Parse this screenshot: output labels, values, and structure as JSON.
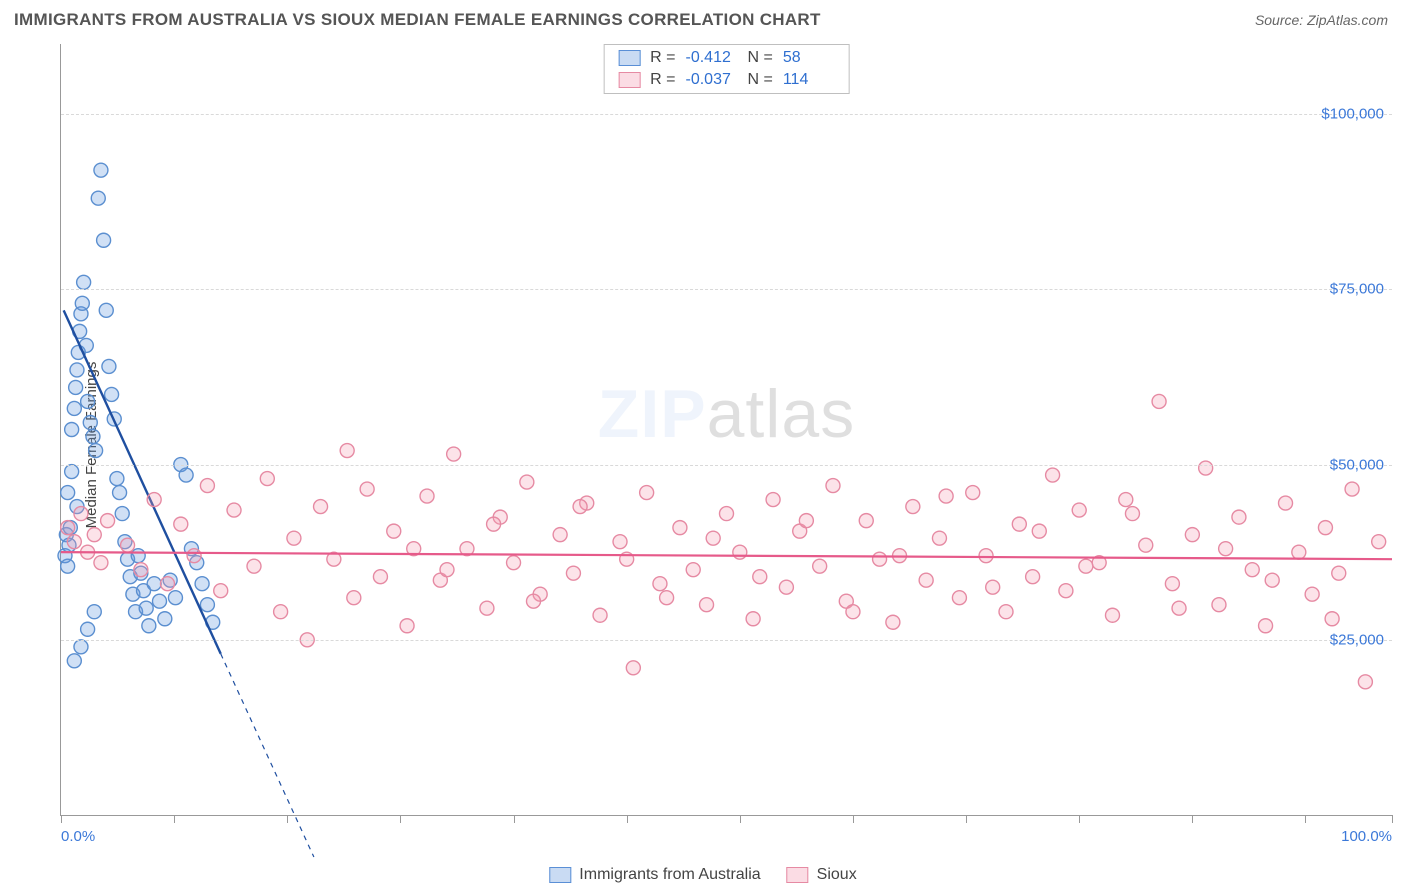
{
  "title": "IMMIGRANTS FROM AUSTRALIA VS SIOUX MEDIAN FEMALE EARNINGS CORRELATION CHART",
  "source_label": "Source: ZipAtlas.com",
  "y_axis_label": "Median Female Earnings",
  "watermark_a": "ZIP",
  "watermark_b": "atlas",
  "chart": {
    "type": "scatter",
    "xlim": [
      0,
      100
    ],
    "ylim": [
      0,
      110000
    ],
    "y_ticks": [
      25000,
      50000,
      75000,
      100000
    ],
    "y_tick_labels": [
      "$25,000",
      "$50,000",
      "$75,000",
      "$100,000"
    ],
    "x_edge_labels": [
      "0.0%",
      "100.0%"
    ],
    "x_minor_ticks": [
      0,
      8.5,
      17,
      25.5,
      34,
      42.5,
      51,
      59.5,
      68,
      76.5,
      85,
      93.5,
      100
    ],
    "grid_color": "#d9d9d9",
    "axis_color": "#999999",
    "marker_radius": 7,
    "marker_stroke_width": 1.4,
    "series": [
      {
        "name": "Immigrants from Australia",
        "fill": "rgba(99,153,222,0.30)",
        "stroke": "#5b8fd0",
        "R_label": "R =",
        "R": "-0.412",
        "N_label": "N =",
        "N": "58",
        "trend": {
          "x1": 0.2,
          "y1": 72000,
          "x2": 12,
          "y2": 23000,
          "stroke": "#1f4fa0",
          "width": 2.4,
          "ext_x2": 19,
          "ext_y2": -6000,
          "dash": "5,5"
        },
        "points": [
          [
            0.3,
            37000
          ],
          [
            0.4,
            40000
          ],
          [
            0.5,
            35500
          ],
          [
            0.6,
            38500
          ],
          [
            0.7,
            41000
          ],
          [
            0.8,
            55000
          ],
          [
            1.0,
            58000
          ],
          [
            1.1,
            61000
          ],
          [
            1.2,
            63500
          ],
          [
            1.3,
            66000
          ],
          [
            1.4,
            69000
          ],
          [
            1.5,
            71500
          ],
          [
            1.6,
            73000
          ],
          [
            1.7,
            76000
          ],
          [
            1.9,
            67000
          ],
          [
            2.0,
            59000
          ],
          [
            2.2,
            56000
          ],
          [
            2.4,
            54000
          ],
          [
            2.6,
            52000
          ],
          [
            2.8,
            88000
          ],
          [
            3.0,
            92000
          ],
          [
            3.2,
            82000
          ],
          [
            3.4,
            72000
          ],
          [
            3.6,
            64000
          ],
          [
            3.8,
            60000
          ],
          [
            4.0,
            56500
          ],
          [
            4.2,
            48000
          ],
          [
            4.4,
            46000
          ],
          [
            4.6,
            43000
          ],
          [
            4.8,
            39000
          ],
          [
            5.0,
            36500
          ],
          [
            5.2,
            34000
          ],
          [
            5.4,
            31500
          ],
          [
            5.6,
            29000
          ],
          [
            5.8,
            37000
          ],
          [
            6.0,
            34500
          ],
          [
            6.2,
            32000
          ],
          [
            6.4,
            29500
          ],
          [
            6.6,
            27000
          ],
          [
            7.0,
            33000
          ],
          [
            7.4,
            30500
          ],
          [
            7.8,
            28000
          ],
          [
            8.2,
            33500
          ],
          [
            8.6,
            31000
          ],
          [
            9.0,
            50000
          ],
          [
            9.4,
            48500
          ],
          [
            9.8,
            38000
          ],
          [
            10.2,
            36000
          ],
          [
            10.6,
            33000
          ],
          [
            11.0,
            30000
          ],
          [
            11.4,
            27500
          ],
          [
            1.0,
            22000
          ],
          [
            1.5,
            24000
          ],
          [
            2.0,
            26500
          ],
          [
            2.5,
            29000
          ],
          [
            0.5,
            46000
          ],
          [
            0.8,
            49000
          ],
          [
            1.2,
            44000
          ]
        ]
      },
      {
        "name": "Sioux",
        "fill": "rgba(244,154,176,0.28)",
        "stroke": "#e68aa3",
        "R_label": "R =",
        "R": "-0.037",
        "N_label": "N =",
        "N": "114",
        "trend": {
          "x1": 0,
          "y1": 37500,
          "x2": 100,
          "y2": 36500,
          "stroke": "#e65a8a",
          "width": 2.2
        },
        "points": [
          [
            0.5,
            41000
          ],
          [
            1.0,
            39000
          ],
          [
            1.5,
            43000
          ],
          [
            2.0,
            37500
          ],
          [
            2.5,
            40000
          ],
          [
            3.0,
            36000
          ],
          [
            3.5,
            42000
          ],
          [
            5.0,
            38500
          ],
          [
            6.0,
            35000
          ],
          [
            7.0,
            45000
          ],
          [
            8.0,
            33000
          ],
          [
            9.0,
            41500
          ],
          [
            10.0,
            37000
          ],
          [
            11.0,
            47000
          ],
          [
            12.0,
            32000
          ],
          [
            13.0,
            43500
          ],
          [
            14.5,
            35500
          ],
          [
            15.5,
            48000
          ],
          [
            16.5,
            29000
          ],
          [
            17.5,
            39500
          ],
          [
            18.5,
            25000
          ],
          [
            19.5,
            44000
          ],
          [
            20.5,
            36500
          ],
          [
            21.5,
            52000
          ],
          [
            22.0,
            31000
          ],
          [
            23.0,
            46500
          ],
          [
            24.0,
            34000
          ],
          [
            25.0,
            40500
          ],
          [
            26.0,
            27000
          ],
          [
            27.5,
            45500
          ],
          [
            28.5,
            33500
          ],
          [
            29.5,
            51500
          ],
          [
            30.5,
            38000
          ],
          [
            32.0,
            29500
          ],
          [
            33.0,
            42500
          ],
          [
            34.0,
            36000
          ],
          [
            35.0,
            47500
          ],
          [
            36.0,
            31500
          ],
          [
            37.5,
            40000
          ],
          [
            38.5,
            34500
          ],
          [
            39.5,
            44500
          ],
          [
            40.5,
            28500
          ],
          [
            42.0,
            39000
          ],
          [
            43.0,
            21000
          ],
          [
            44.0,
            46000
          ],
          [
            45.0,
            33000
          ],
          [
            46.5,
            41000
          ],
          [
            47.5,
            35000
          ],
          [
            48.5,
            30000
          ],
          [
            50.0,
            43000
          ],
          [
            51.0,
            37500
          ],
          [
            52.0,
            28000
          ],
          [
            53.5,
            45000
          ],
          [
            54.5,
            32500
          ],
          [
            55.5,
            40500
          ],
          [
            57.0,
            35500
          ],
          [
            58.0,
            47000
          ],
          [
            59.0,
            30500
          ],
          [
            60.5,
            42000
          ],
          [
            61.5,
            36500
          ],
          [
            62.5,
            27500
          ],
          [
            64.0,
            44000
          ],
          [
            65.0,
            33500
          ],
          [
            66.0,
            39500
          ],
          [
            67.5,
            31000
          ],
          [
            68.5,
            46000
          ],
          [
            69.5,
            37000
          ],
          [
            71.0,
            29000
          ],
          [
            72.0,
            41500
          ],
          [
            73.0,
            34000
          ],
          [
            74.5,
            48500
          ],
          [
            75.5,
            32000
          ],
          [
            76.5,
            43500
          ],
          [
            78.0,
            36000
          ],
          [
            79.0,
            28500
          ],
          [
            80.0,
            45000
          ],
          [
            81.5,
            38500
          ],
          [
            82.5,
            59000
          ],
          [
            83.5,
            33000
          ],
          [
            85.0,
            40000
          ],
          [
            86.0,
            49500
          ],
          [
            87.0,
            30000
          ],
          [
            88.5,
            42500
          ],
          [
            89.5,
            35000
          ],
          [
            90.5,
            27000
          ],
          [
            92.0,
            44500
          ],
          [
            93.0,
            37500
          ],
          [
            94.0,
            31500
          ],
          [
            95.0,
            41000
          ],
          [
            96.0,
            34500
          ],
          [
            97.0,
            46500
          ],
          [
            98.0,
            19000
          ],
          [
            99.0,
            39000
          ],
          [
            95.5,
            28000
          ],
          [
            91.0,
            33500
          ],
          [
            87.5,
            38000
          ],
          [
            84.0,
            29500
          ],
          [
            80.5,
            43000
          ],
          [
            77.0,
            35500
          ],
          [
            73.5,
            40500
          ],
          [
            70.0,
            32500
          ],
          [
            66.5,
            45500
          ],
          [
            63.0,
            37000
          ],
          [
            59.5,
            29000
          ],
          [
            56.0,
            42000
          ],
          [
            52.5,
            34000
          ],
          [
            49.0,
            39500
          ],
          [
            45.5,
            31000
          ],
          [
            42.5,
            36500
          ],
          [
            39.0,
            44000
          ],
          [
            35.5,
            30500
          ],
          [
            32.5,
            41500
          ],
          [
            29.0,
            35000
          ],
          [
            26.5,
            38000
          ]
        ]
      }
    ]
  },
  "legend_bottom": {
    "series1": "Immigrants from Australia",
    "series2": "Sioux"
  }
}
